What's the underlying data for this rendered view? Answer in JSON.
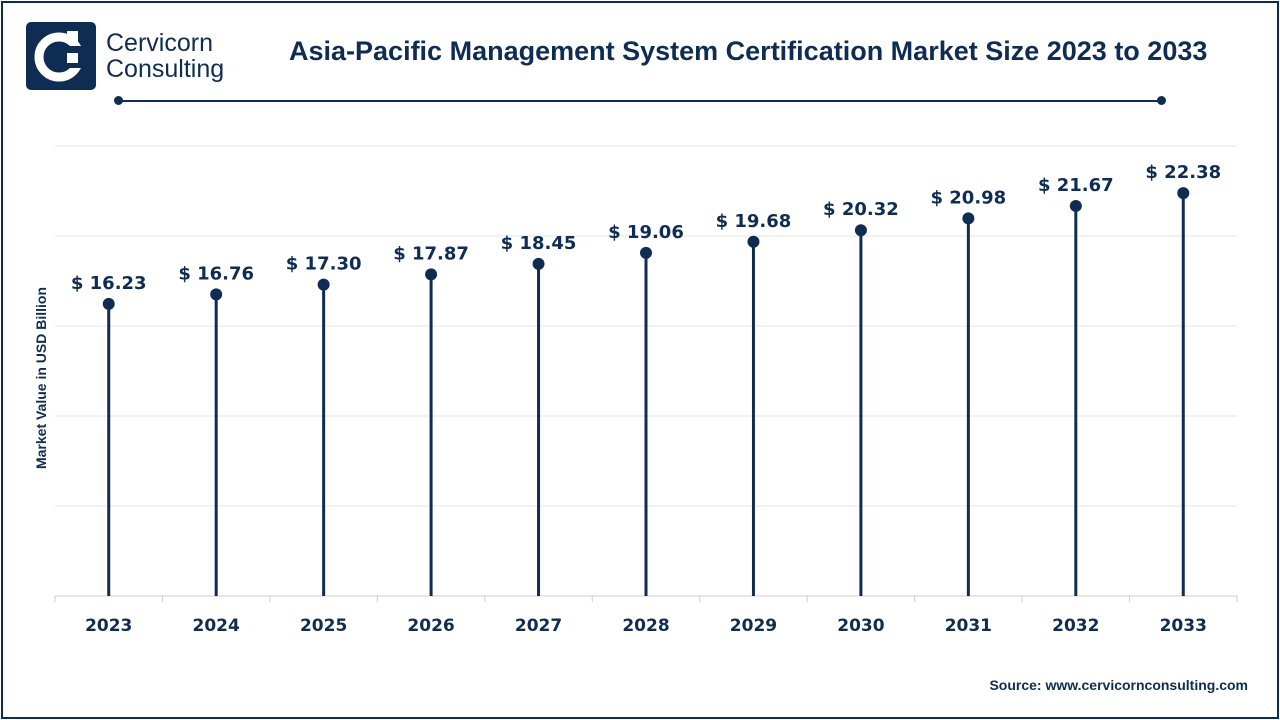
{
  "brand": {
    "line1": "Cervicorn",
    "line2": "Consulting",
    "color": "#0f2d52"
  },
  "title": "Asia-Pacific Management System Certification Market Size 2023 to 2033",
  "y_axis_label": "Market Value in USD Billion",
  "source": "Source: www.cervicornconsulting.com",
  "chart_data": {
    "type": "lollipop",
    "categories": [
      "2023",
      "2024",
      "2025",
      "2026",
      "2027",
      "2028",
      "2029",
      "2030",
      "2031",
      "2032",
      "2033"
    ],
    "values": [
      16.23,
      16.76,
      17.3,
      17.87,
      18.45,
      19.06,
      19.68,
      20.32,
      20.98,
      21.67,
      22.38
    ],
    "data_labels": [
      "$ 16.23",
      "$ 16.76",
      "$ 17.30",
      "$ 17.87",
      "$ 18.45",
      "$ 19.06",
      "$ 19.68",
      "$ 20.32",
      "$ 20.98",
      "$ 21.67",
      "$ 22.38"
    ],
    "ylabel": "Market Value in USD Billion",
    "ylim": [
      0,
      25
    ],
    "grid": true,
    "color": "#0f2d52"
  }
}
